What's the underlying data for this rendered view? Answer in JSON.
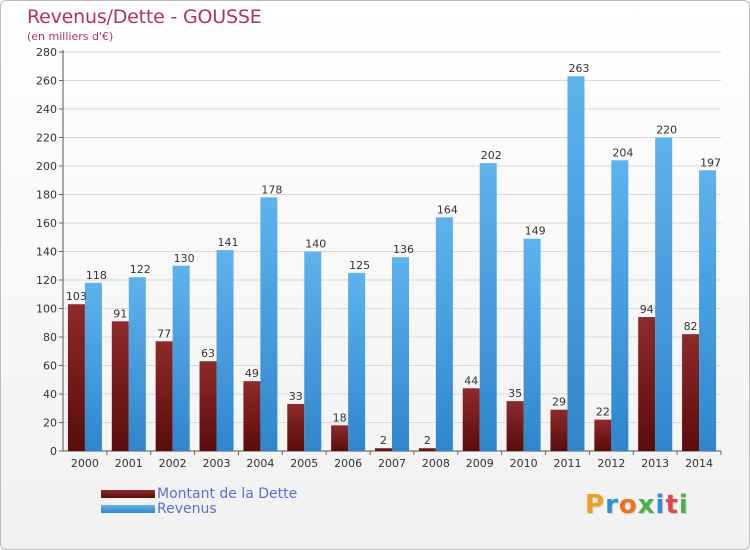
{
  "header": {
    "title": "Revenus/Dette - GOUSSE",
    "subtitle": "(en milliers d'€)"
  },
  "colors": {
    "title": "#b5305e",
    "dette_top": "#8e2a2a",
    "dette_bottom": "#5a0c0c",
    "revenus_top": "#5eb3ee",
    "revenus_bottom": "#2f86cc",
    "legend_text": "#5a6fd0"
  },
  "chart_data": {
    "type": "bar",
    "title": "Revenus/Dette - GOUSSE",
    "ylabel": "(en milliers d'€)",
    "xlabel": "",
    "ylim": [
      0,
      280
    ],
    "yticks": [
      0,
      20,
      40,
      60,
      80,
      100,
      120,
      140,
      160,
      180,
      200,
      220,
      240,
      260,
      280
    ],
    "grid": true,
    "legend_position": "bottom-left",
    "categories": [
      "2000",
      "2001",
      "2002",
      "2003",
      "2004",
      "2005",
      "2006",
      "2007",
      "2008",
      "2009",
      "2010",
      "2011",
      "2012",
      "2013",
      "2014"
    ],
    "series": [
      {
        "name": "Montant de la Dette",
        "values": [
          103,
          91,
          77,
          63,
          49,
          33,
          18,
          2,
          2,
          44,
          35,
          29,
          22,
          94,
          82
        ]
      },
      {
        "name": "Revenus",
        "values": [
          118,
          122,
          130,
          141,
          178,
          140,
          125,
          136,
          164,
          202,
          149,
          263,
          204,
          220,
          197
        ]
      }
    ]
  },
  "legend": {
    "items": [
      {
        "label": "Montant de la Dette"
      },
      {
        "label": "Revenus"
      }
    ]
  },
  "logo": {
    "letters": [
      "P",
      "r",
      "o",
      "x",
      "i",
      "t",
      "i"
    ],
    "colors": [
      "#f0a020",
      "#2f8fd6",
      "#f07020",
      "#49b04a",
      "#2f8fd6",
      "#e04848",
      "#49b04a"
    ]
  }
}
